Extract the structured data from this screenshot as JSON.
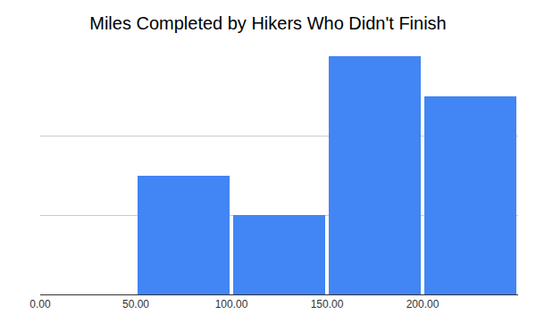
{
  "chart_data": {
    "type": "histogram",
    "title": "Miles Completed by Hikers Who Didn't Finish",
    "bins": [
      0,
      50,
      100,
      150,
      200,
      250
    ],
    "values": [
      0,
      3,
      2,
      6,
      5
    ],
    "color": "#4285f4",
    "xlim": [
      0,
      250
    ],
    "xticks": [
      {
        "value": 0,
        "label": "0.00"
      },
      {
        "value": 50,
        "label": "50.00"
      },
      {
        "value": 100,
        "label": "100.00"
      },
      {
        "value": 150,
        "label": "150.00"
      },
      {
        "value": 200,
        "label": "200.00"
      }
    ],
    "ylim": [
      0,
      6
    ],
    "yticks": [
      0,
      2,
      4,
      6
    ],
    "grid": true,
    "tick_labels": "x"
  }
}
